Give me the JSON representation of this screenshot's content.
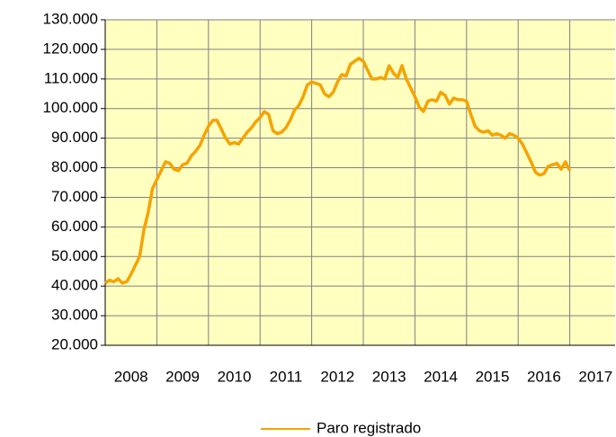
{
  "chart_data": {
    "type": "line",
    "categories": [
      null,
      null,
      null,
      null,
      null,
      null,
      "2008",
      null,
      null,
      null,
      null,
      null,
      null,
      null,
      null,
      null,
      null,
      null,
      "2009",
      null,
      null,
      null,
      null,
      null,
      null,
      null,
      null,
      null,
      null,
      null,
      "2010",
      null,
      null,
      null,
      null,
      null,
      null,
      null,
      null,
      null,
      null,
      null,
      "2011",
      null,
      null,
      null,
      null,
      null,
      null,
      null,
      null,
      null,
      null,
      null,
      "2012",
      null,
      null,
      null,
      null,
      null,
      null,
      null,
      null,
      null,
      null,
      null,
      "2013",
      null,
      null,
      null,
      null,
      null,
      null,
      null,
      null,
      null,
      null,
      null,
      "2014",
      null,
      null,
      null,
      null,
      null,
      null,
      null,
      null,
      null,
      null,
      null,
      "2015",
      null,
      null,
      null,
      null,
      null,
      null,
      null,
      null,
      null,
      null,
      null,
      "2016",
      null,
      null,
      null,
      null,
      null,
      null,
      null,
      null,
      null,
      null,
      null,
      "2017",
      null,
      null,
      null,
      null,
      null
    ],
    "series": [
      {
        "name": "Paro registrado",
        "color": "#f5a300",
        "values": [
          41000,
          42000,
          41500,
          42500,
          41000,
          41500,
          44000,
          47000,
          50000,
          59000,
          65000,
          73000,
          76000,
          79000,
          82000,
          81500,
          79500,
          79000,
          81000,
          81500,
          84000,
          85500,
          87500,
          91000,
          94000,
          96000,
          96000,
          93000,
          90000,
          88000,
          88500,
          88000,
          90000,
          92000,
          93500,
          95500,
          97000,
          99000,
          98000,
          92500,
          91500,
          92000,
          93500,
          96000,
          99500,
          101000,
          104000,
          108000,
          109000,
          108500,
          108000,
          105000,
          104000,
          105500,
          109000,
          111500,
          111000,
          115000,
          116000,
          117000,
          116000,
          113000,
          110000,
          110000,
          110500,
          110000,
          114500,
          112000,
          110500,
          114500,
          110000,
          107000,
          104000,
          100500,
          99000,
          102500,
          103000,
          102500,
          105500,
          104500,
          101500,
          103500,
          103000,
          103000,
          102500,
          98000,
          94000,
          92500,
          92000,
          92500,
          91000,
          91500,
          91000,
          90000,
          91500,
          91000,
          90000,
          88000,
          85000,
          82000,
          78500,
          77500,
          78000,
          80500,
          81000,
          81500,
          79500,
          82000,
          79000,
          null,
          null,
          null,
          null,
          null,
          null,
          null,
          null,
          null,
          null,
          null
        ]
      }
    ],
    "ylim": [
      20000,
      130000
    ],
    "yticks": [
      {
        "value": 20000,
        "label": "20.000"
      },
      {
        "value": 30000,
        "label": "30.000"
      },
      {
        "value": 40000,
        "label": "40.000"
      },
      {
        "value": 50000,
        "label": "50.000"
      },
      {
        "value": 60000,
        "label": "60.000"
      },
      {
        "value": 70000,
        "label": "70.000"
      },
      {
        "value": 80000,
        "label": "80.000"
      },
      {
        "value": 90000,
        "label": "90.000"
      },
      {
        "value": 100000,
        "label": "100.000"
      },
      {
        "value": 110000,
        "label": "110.000"
      },
      {
        "value": 120000,
        "label": "120.000"
      },
      {
        "value": 130000,
        "label": "130.000"
      }
    ],
    "grid": true,
    "legend": "bottom",
    "background": "#ffffc0"
  }
}
